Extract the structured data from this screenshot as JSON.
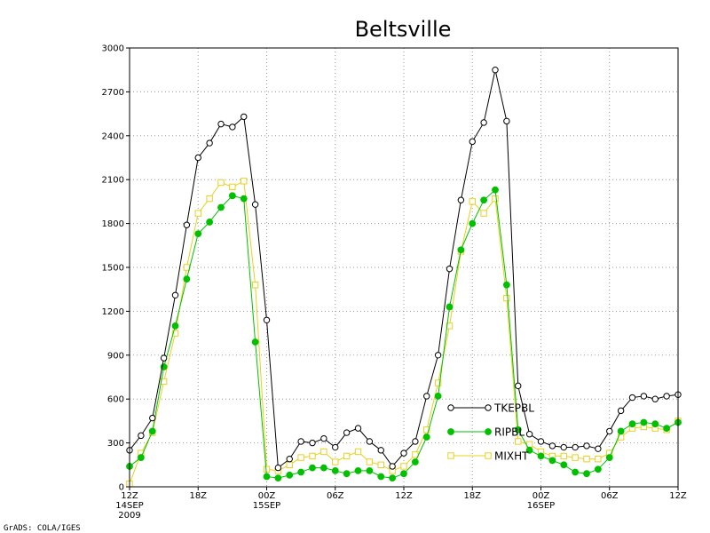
{
  "chart_data": {
    "type": "line",
    "title": "Beltsville",
    "ylim": [
      0,
      3000
    ],
    "y_ticks": [
      0,
      300,
      600,
      900,
      1200,
      1500,
      1800,
      2100,
      2400,
      2700,
      3000
    ],
    "xlim": [
      0,
      48
    ],
    "x_ticks": [
      {
        "x": 0,
        "label": "12Z",
        "sub1": "14SEP",
        "sub2": "2009"
      },
      {
        "x": 6,
        "label": "18Z",
        "sub1": "",
        "sub2": ""
      },
      {
        "x": 12,
        "label": "00Z",
        "sub1": "15SEP",
        "sub2": ""
      },
      {
        "x": 18,
        "label": "06Z",
        "sub1": "",
        "sub2": ""
      },
      {
        "x": 24,
        "label": "12Z",
        "sub1": "",
        "sub2": ""
      },
      {
        "x": 30,
        "label": "18Z",
        "sub1": "",
        "sub2": ""
      },
      {
        "x": 36,
        "label": "00Z",
        "sub1": "16SEP",
        "sub2": ""
      },
      {
        "x": 42,
        "label": "06Z",
        "sub1": "",
        "sub2": ""
      },
      {
        "x": 48,
        "label": "12Z",
        "sub1": "",
        "sub2": ""
      }
    ],
    "grid": true,
    "legend_position": "lower-right",
    "series": [
      {
        "name": "TKEPBL",
        "color": "#000000",
        "marker": "open-circle",
        "x": [
          0,
          1,
          2,
          3,
          4,
          5,
          6,
          7,
          8,
          9,
          10,
          11,
          12,
          13,
          14,
          15,
          16,
          17,
          18,
          19,
          20,
          21,
          22,
          23,
          24,
          25,
          26,
          27,
          28,
          29,
          30,
          31,
          32,
          33,
          34,
          35,
          36,
          37,
          38,
          39,
          40,
          41,
          42,
          43,
          44,
          45,
          46,
          47,
          48
        ],
        "values": [
          250,
          350,
          470,
          880,
          1310,
          1790,
          2250,
          2350,
          2480,
          2460,
          2530,
          1930,
          1140,
          130,
          190,
          310,
          300,
          330,
          270,
          370,
          400,
          310,
          250,
          140,
          230,
          310,
          620,
          900,
          1490,
          1960,
          2360,
          2490,
          2850,
          2500,
          690,
          360,
          310,
          280,
          270,
          270,
          280,
          260,
          380,
          520,
          610,
          620,
          600,
          620,
          630
        ]
      },
      {
        "name": "RIPBL",
        "color": "#00c000",
        "marker": "filled-circle",
        "x": [
          0,
          1,
          2,
          3,
          4,
          5,
          6,
          7,
          8,
          9,
          10,
          11,
          12,
          13,
          14,
          15,
          16,
          17,
          18,
          19,
          20,
          21,
          22,
          23,
          24,
          25,
          26,
          27,
          28,
          29,
          30,
          31,
          32,
          33,
          34,
          35,
          36,
          37,
          38,
          39,
          40,
          41,
          42,
          43,
          44,
          45,
          46,
          47,
          48
        ],
        "values": [
          140,
          200,
          380,
          820,
          1100,
          1420,
          1730,
          1810,
          1910,
          1990,
          1970,
          990,
          70,
          60,
          80,
          100,
          130,
          130,
          110,
          90,
          110,
          110,
          70,
          60,
          90,
          170,
          340,
          620,
          1230,
          1620,
          1800,
          1960,
          2030,
          1380,
          390,
          250,
          210,
          180,
          150,
          100,
          90,
          120,
          200,
          380,
          430,
          440,
          430,
          400,
          440
        ]
      },
      {
        "name": "MIXHT",
        "color": "#e8d020",
        "marker": "open-square",
        "x": [
          0,
          1,
          2,
          3,
          4,
          5,
          6,
          7,
          8,
          9,
          10,
          11,
          12,
          13,
          14,
          15,
          16,
          17,
          18,
          19,
          20,
          21,
          22,
          23,
          24,
          25,
          26,
          27,
          28,
          29,
          30,
          31,
          32,
          33,
          34,
          35,
          36,
          37,
          38,
          39,
          40,
          41,
          42,
          43,
          44,
          45,
          46,
          47,
          48
        ],
        "values": [
          20,
          230,
          370,
          720,
          1050,
          1500,
          1870,
          1970,
          2080,
          2050,
          2090,
          1380,
          120,
          110,
          150,
          200,
          210,
          240,
          170,
          210,
          240,
          170,
          150,
          110,
          140,
          220,
          390,
          710,
          1100,
          1610,
          1950,
          1870,
          1970,
          1290,
          310,
          290,
          240,
          210,
          210,
          200,
          190,
          190,
          230,
          340,
          400,
          410,
          400,
          390,
          450
        ]
      }
    ],
    "legend_marker_x": 50
  },
  "footer": {
    "credit": "GrADS: COLA/IGES"
  }
}
